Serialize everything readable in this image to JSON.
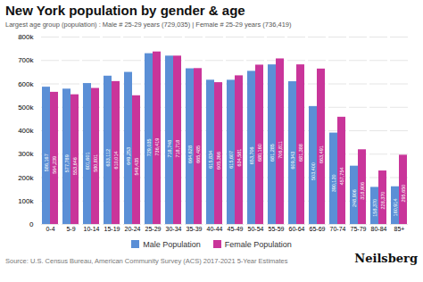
{
  "chart_data": {
    "type": "bar",
    "title": "New York population by gender & age",
    "subtitle": "Largest age group (population) : Male # 25-29 years (729,035) | Female # 25-29 years (736,419)",
    "source": "Source: U.S. Census Bureau, American Community Survey (ACS) 2017-2021 5-Year Estimates",
    "annotations": [
      "Neilsberg"
    ],
    "categories": [
      "0-4",
      "5-9",
      "10-14",
      "15-19",
      "20-24",
      "25-29",
      "30-34",
      "35-39",
      "40-44",
      "45-49",
      "50-54",
      "55-59",
      "60-64",
      "65-69",
      "70-74",
      "75-79",
      "80-84",
      "85+"
    ],
    "series": [
      {
        "name": "Male Population",
        "color": "#5b8fd6",
        "values": [
          586167,
          577789,
          601601,
          633112,
          649253,
          729035,
          718748,
          664628,
          615834,
          615607,
          653706,
          681285,
          609343,
          503400,
          390120,
          248906,
          158370,
          160914
        ],
        "value_labels": [
          "586,167",
          "577,789",
          "601,601",
          "633,112",
          "649,253",
          "729,035",
          "718,748",
          "664,628",
          "615,834",
          "615,607",
          "653,706",
          "681,285",
          "609,343",
          "503,400",
          "390,120",
          "248,906",
          "158,370",
          "160,914"
        ]
      },
      {
        "name": "Female Population",
        "color": "#c9359a",
        "values": [
          564239,
          553646,
          580801,
          610014,
          549435,
          736419,
          718718,
          665485,
          605366,
          634581,
          680160,
          706811,
          681388,
          663491,
          457754,
          318906,
          228370,
          295650
        ],
        "value_labels": [
          "564,239",
          "553,646",
          "580,801",
          "610,014",
          "549,435",
          "736,419",
          "718,718",
          "665,485",
          "605,366",
          "634,581",
          "680,160",
          "706,811",
          "681,388",
          "663,491",
          "457,754",
          "318,906",
          "228,370",
          "295,650"
        ]
      }
    ],
    "ylim": [
      0,
      800000
    ],
    "yticks": [
      0,
      {
        "value": 100000,
        "label": "100k"
      },
      {
        "value": 200000,
        "label": "200k"
      },
      {
        "value": 300000,
        "label": "300k"
      },
      {
        "value": 400000,
        "label": "400k"
      },
      {
        "value": 500000,
        "label": "500k"
      },
      {
        "value": 600000,
        "label": "600k"
      },
      {
        "value": 700000,
        "label": "700k"
      },
      {
        "value": 800000,
        "label": "800k"
      }
    ],
    "grid": true,
    "legend": "bottom",
    "data_labels": true
  }
}
